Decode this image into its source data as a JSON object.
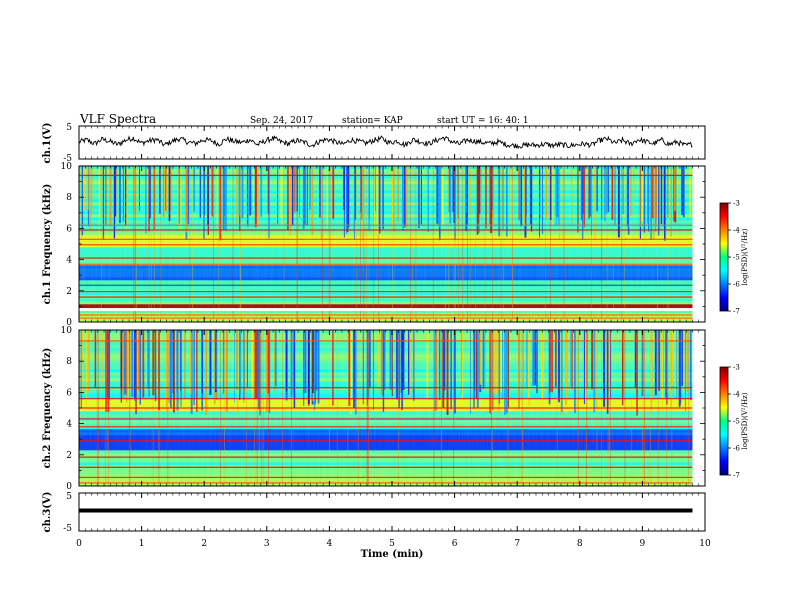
{
  "header": {
    "title": "VLF Spectra",
    "date": "Sep. 24, 2017",
    "station": "station= KAP",
    "start": "start  UT =   16: 40: 1"
  },
  "chart_data": [
    {
      "type": "line",
      "panel": "ch1-waveform",
      "ylabel": "ch.1(V)",
      "ylim": [
        -5,
        5
      ],
      "yticks": [
        "5",
        "-5"
      ],
      "series": [
        {
          "values": [
            0.2,
            0.8,
            -0.4,
            1.0,
            0.3,
            -0.6,
            0.7,
            1.4,
            -0.2,
            0.5,
            0.9,
            -0.8,
            0.4,
            1.2,
            0.1,
            -0.3,
            0.8,
            0.6,
            -0.5,
            1.1,
            0.3,
            0.0,
            0.9,
            -0.7,
            0.5,
            1.3,
            0.2,
            -0.4,
            0.6,
            0.1,
            -0.9,
            0.4,
            1.0,
            0.2,
            -0.6,
            0.8,
            0.3,
            -0.2,
            0.7,
            1.2,
            -0.1,
            0.5,
            -0.8,
            0.9,
            0.2,
            -0.4,
            0.6,
            1.5,
            0.3,
            -0.5,
            0.8,
            0.4,
            0.0,
            -0.3,
            0.2,
            -0.6,
            -0.9,
            -1.0,
            -0.7,
            -0.8,
            -0.5,
            -0.9,
            -0.6,
            -1.0,
            -0.7,
            -0.4,
            -0.8,
            0.6,
            1.1,
            -0.2,
            0.7,
            -0.5,
            0.9,
            0.3,
            -0.4,
            0.8,
            -0.6,
            0.2,
            -0.9,
            -0.5
          ]
        }
      ]
    },
    {
      "type": "heatmap",
      "panel": "ch1-spectrogram",
      "ylabel": "ch.1 Frequency (kHz)",
      "ylim": [
        0,
        10
      ],
      "yticks": [
        "0",
        "2",
        "4",
        "6",
        "8",
        "10"
      ],
      "colorbar": {
        "label": "log(PSD)(V²/Hz)",
        "range": [
          -7,
          -3
        ],
        "ticks": [
          "-3",
          "-4",
          "-5",
          "-6",
          "-7"
        ]
      }
    },
    {
      "type": "heatmap",
      "panel": "ch2-spectrogram",
      "ylabel": "ch.2 Frequency (kHz)",
      "ylim": [
        0,
        10
      ],
      "yticks": [
        "0",
        "2",
        "4",
        "6",
        "8",
        "10"
      ],
      "colorbar": {
        "label": "log(PSD)(V²/Hz)",
        "range": [
          -7,
          -3
        ],
        "ticks": [
          "-3",
          "-4",
          "-5",
          "-6",
          "-7"
        ]
      }
    },
    {
      "type": "line",
      "panel": "ch3-waveform",
      "ylabel": "ch.3(V)",
      "ylim": [
        -5,
        5
      ],
      "yticks": [
        "5",
        "-5"
      ],
      "series": [
        {
          "values": [
            0,
            0
          ]
        }
      ]
    }
  ],
  "xaxis": {
    "label": "Time (min)",
    "range": [
      0,
      10
    ],
    "ticks": [
      "0",
      "1",
      "2",
      "3",
      "4",
      "5",
      "6",
      "7",
      "8",
      "9",
      "10"
    ],
    "data_end": 9.8
  },
  "colors": {
    "frame": "#000000",
    "trace": "#000000",
    "background": "#ffffff"
  }
}
